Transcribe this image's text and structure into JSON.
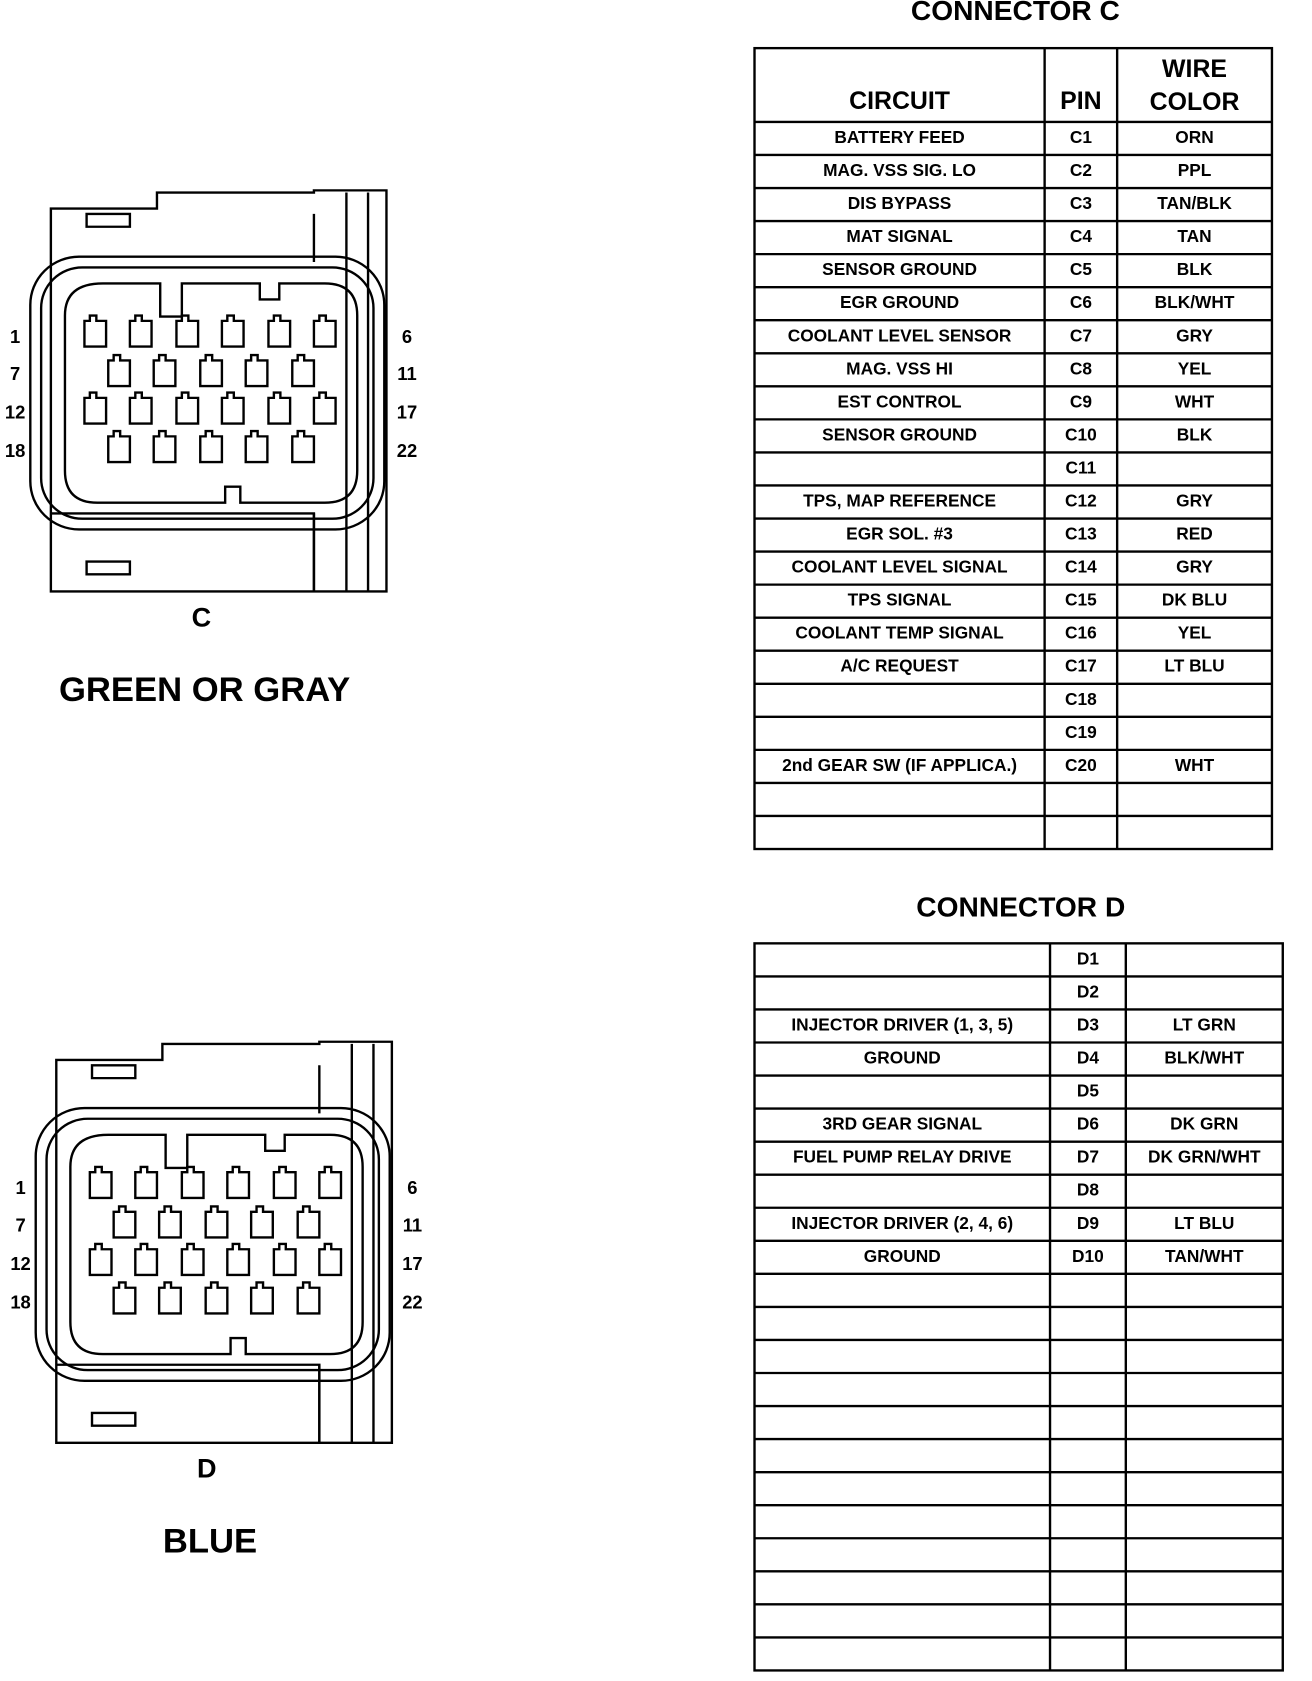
{
  "connectors": [
    {
      "letter": "C",
      "color": "GREEN OR GRAY",
      "left_pins": [
        1,
        7,
        12,
        18
      ],
      "right_pins": [
        6,
        11,
        17,
        22
      ]
    },
    {
      "letter": "D",
      "color": "BLUE",
      "left_pins": [
        1,
        7,
        12,
        18
      ],
      "right_pins": [
        6,
        11,
        17,
        22
      ]
    }
  ],
  "tables": [
    {
      "title": "CONNECTOR C",
      "header": {
        "circuit": "CIRCUIT",
        "pin": "PIN",
        "color_lines": [
          "WIRE",
          "COLOR"
        ]
      },
      "rows": [
        {
          "circuit": "BATTERY FEED",
          "pin": "C1",
          "color": "ORN"
        },
        {
          "circuit": "MAG. VSS SIG. LO",
          "pin": "C2",
          "color": "PPL"
        },
        {
          "circuit": "DIS BYPASS",
          "pin": "C3",
          "color": "TAN/BLK"
        },
        {
          "circuit": "MAT SIGNAL",
          "pin": "C4",
          "color": "TAN"
        },
        {
          "circuit": "SENSOR GROUND",
          "pin": "C5",
          "color": "BLK"
        },
        {
          "circuit": "EGR GROUND",
          "pin": "C6",
          "color": "BLK/WHT"
        },
        {
          "circuit": "COOLANT LEVEL SENSOR",
          "pin": "C7",
          "color": "GRY"
        },
        {
          "circuit": "MAG. VSS HI",
          "pin": "C8",
          "color": "YEL"
        },
        {
          "circuit": "EST CONTROL",
          "pin": "C9",
          "color": "WHT"
        },
        {
          "circuit": "SENSOR GROUND",
          "pin": "C10",
          "color": "BLK"
        },
        {
          "pin": "C11"
        },
        {
          "circuit": "TPS, MAP REFERENCE",
          "pin": "C12",
          "color": "GRY"
        },
        {
          "circuit": "EGR SOL. #3",
          "pin": "C13",
          "color": "RED"
        },
        {
          "circuit": "COOLANT LEVEL SIGNAL",
          "pin": "C14",
          "color": "GRY"
        },
        {
          "circuit": "TPS SIGNAL",
          "pin": "C15",
          "color": "DK BLU"
        },
        {
          "circuit": "COOLANT TEMP SIGNAL",
          "pin": "C16",
          "color": "YEL"
        },
        {
          "circuit": "A/C REQUEST",
          "pin": "C17",
          "color": "LT BLU"
        },
        {
          "pin": "C18"
        },
        {
          "pin": "C19"
        },
        {
          "circuit": "2nd GEAR SW (IF APPLICA.)",
          "pin": "C20",
          "color": "WHT"
        }
      ]
    },
    {
      "title": "CONNECTOR D",
      "rows": [
        {
          "pin": "D1"
        },
        {
          "pin": "D2"
        },
        {
          "circuit": "INJECTOR DRIVER (1, 3, 5)",
          "pin": "D3",
          "color": "LT GRN"
        },
        {
          "circuit": "GROUND",
          "pin": "D4",
          "color": "BLK/WHT"
        },
        {
          "pin": "D5"
        },
        {
          "circuit": "3RD GEAR SIGNAL",
          "pin": "D6",
          "color": "DK GRN"
        },
        {
          "circuit": "FUEL PUMP RELAY DRIVE",
          "pin": "D7",
          "color": "DK GRN/WHT"
        },
        {
          "pin": "D8"
        },
        {
          "circuit": "INJECTOR DRIVER (2, 4, 6)",
          "pin": "D9",
          "color": "LT BLU"
        },
        {
          "circuit": "GROUND",
          "pin": "D10",
          "color": "TAN/WHT"
        }
      ]
    }
  ]
}
